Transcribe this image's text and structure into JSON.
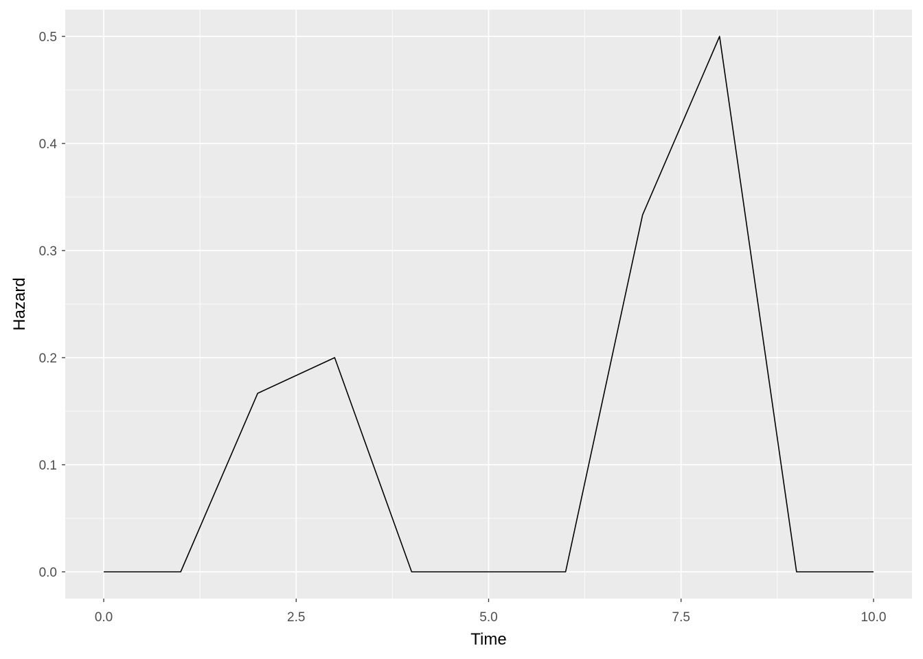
{
  "chart_data": {
    "type": "line",
    "title": "",
    "xlabel": "Time",
    "ylabel": "Hazard",
    "xlim": [
      -0.5,
      10.5
    ],
    "ylim": [
      -0.025,
      0.525
    ],
    "x_ticks": [
      0,
      2.5,
      5,
      7.5,
      10
    ],
    "x_tick_labels": [
      "0.0",
      "2.5",
      "5.0",
      "7.5",
      "10.0"
    ],
    "y_ticks": [
      0,
      0.1,
      0.2,
      0.3,
      0.4,
      0.5
    ],
    "y_tick_labels": [
      "0.0",
      "0.1",
      "0.2",
      "0.3",
      "0.4",
      "0.5"
    ],
    "grid": true,
    "panel_background": "#EBEBEB",
    "line_color": "#000000",
    "series": [
      {
        "x": [
          0,
          1,
          2,
          3,
          4,
          5,
          6,
          7,
          8,
          9,
          10
        ],
        "y": [
          0,
          0,
          0.1667,
          0.2,
          0,
          0,
          0,
          0.3333,
          0.5,
          0,
          0
        ]
      }
    ]
  }
}
